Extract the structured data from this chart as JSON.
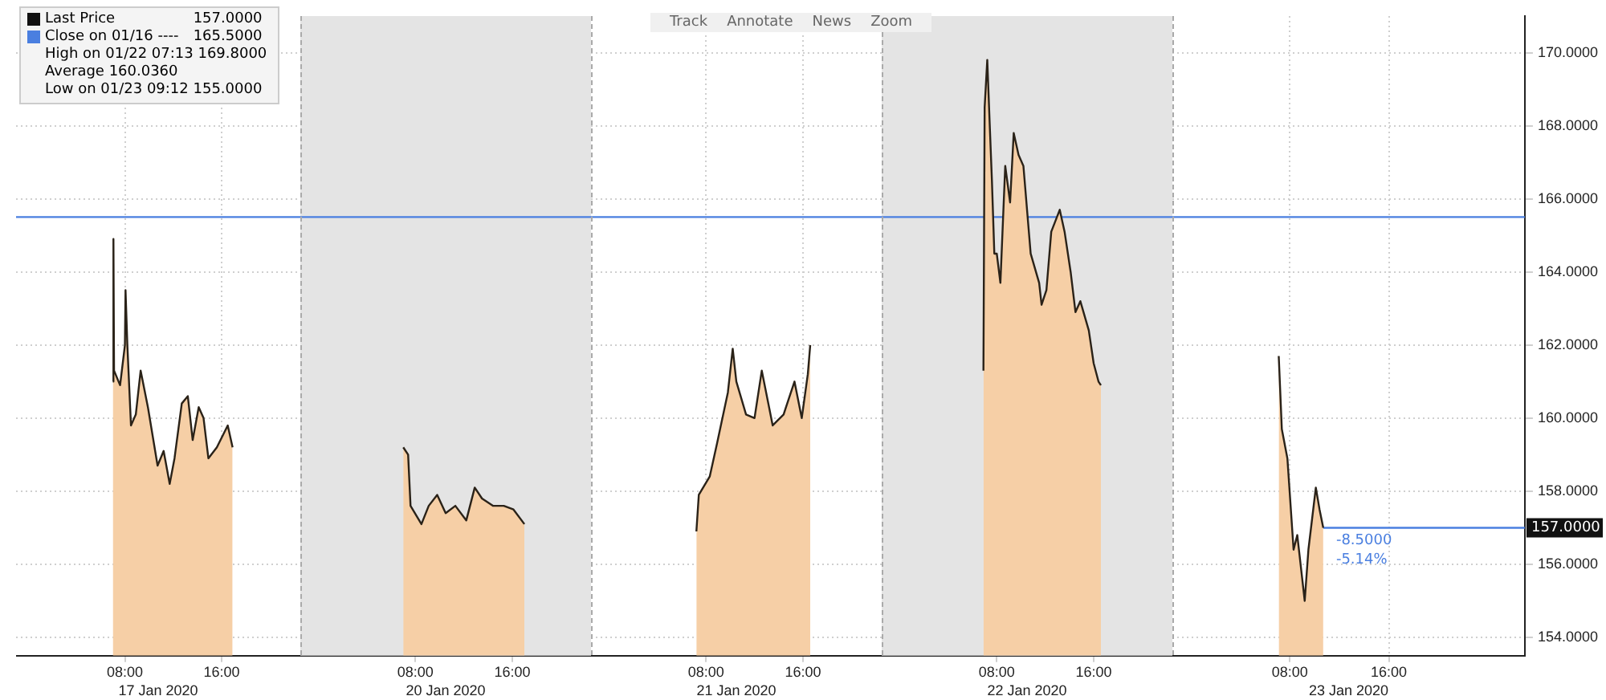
{
  "chart_data": [
    {
      "type": "area",
      "xlabel": "17 Jan 2020",
      "series": [
        {
          "name": "Last Price",
          "color": "#f6cfa6",
          "x": [
            "2020-01-17T07:00",
            "2020-01-17T07:03",
            "2020-01-17T07:06",
            "2020-01-17T07:36",
            "2020-01-17T08:00",
            "2020-01-17T08:03",
            "2020-01-17T08:12",
            "2020-01-17T08:30",
            "2020-01-17T08:54",
            "2020-01-17T09:18",
            "2020-01-17T09:54",
            "2020-01-17T10:42",
            "2020-01-17T11:12",
            "2020-01-17T11:42",
            "2020-01-17T12:06",
            "2020-01-17T12:42",
            "2020-01-17T13:12",
            "2020-01-17T13:36",
            "2020-01-17T14:06",
            "2020-01-17T14:30",
            "2020-01-17T14:54",
            "2020-01-17T15:36",
            "2020-01-17T16:30",
            "2020-01-17T16:54"
          ],
          "values": [
            161.0,
            164.9,
            161.3,
            160.9,
            162.0,
            163.5,
            162.0,
            159.8,
            160.1,
            161.3,
            160.3,
            158.7,
            159.1,
            158.2,
            158.9,
            160.4,
            160.6,
            159.4,
            160.3,
            160.0,
            158.9,
            159.2,
            159.8,
            159.2
          ]
        }
      ],
      "xlim": [
        "2020-01-16T23:00",
        "2020-01-17T22:30"
      ],
      "xticks": [
        {
          "value": "2020-01-17T08:00",
          "label": "08:00"
        },
        {
          "value": "2020-01-17T16:00",
          "label": "16:00"
        }
      ],
      "ylim": [
        153.5,
        171
      ],
      "yticks": [
        154,
        156,
        158,
        160,
        162,
        164,
        166,
        168,
        170
      ],
      "ref_lines": [
        {
          "axis": "y",
          "value": 165.5,
          "color": "#4a7fe0",
          "line_style": "solid"
        }
      ],
      "annotations": [
        "157.0000",
        "Close on 01/16 ----",
        "165.5000",
        "High on 01/22 07:13 169.8000",
        "Average 160.0360",
        "Low on 01/23 09:12 155.0000",
        "Track",
        "Annotate",
        "News",
        "Zoom"
      ],
      "grid": true,
      "legend": "top left",
      "tick_labels": "x",
      "line_style": "solid",
      "marker": "none"
    },
    {
      "type": "area",
      "xlabel": "20 Jan 2020",
      "series": [
        {
          "color": "#f6cfa6",
          "x": [
            "2020-01-20T07:00",
            "2020-01-20T07:24",
            "2020-01-20T07:36",
            "2020-01-20T08:30",
            "2020-01-20T09:06",
            "2020-01-20T09:48",
            "2020-01-20T10:30",
            "2020-01-20T11:18",
            "2020-01-20T12:12",
            "2020-01-20T12:54",
            "2020-01-20T13:30",
            "2020-01-20T14:24",
            "2020-01-20T15:18",
            "2020-01-20T16:06",
            "2020-01-20T17:00"
          ],
          "values": [
            159.2,
            159.0,
            157.6,
            157.1,
            157.6,
            157.9,
            157.4,
            157.6,
            157.2,
            158.1,
            157.8,
            157.6,
            157.6,
            157.5,
            157.1
          ]
        }
      ],
      "xlim": [
        "2020-01-19T22:30",
        "2020-01-20T22:30"
      ],
      "xticks": [
        {
          "value": "2020-01-20T08:00",
          "label": "08:00"
        },
        {
          "value": "2020-01-20T16:00",
          "label": "16:00"
        }
      ],
      "ylim": [
        153.5,
        171
      ],
      "yticks": [
        154,
        156,
        158,
        160,
        162,
        164,
        166,
        168,
        170
      ],
      "bands": [
        {
          "axis": "x",
          "from": "2020-01-19T22:30",
          "to": "2020-01-20T22:30",
          "color": "#e4e4e4"
        }
      ],
      "ref_lines": [
        {
          "axis": "y",
          "value": 165.5,
          "color": "#4a7fe0",
          "line_style": "solid"
        }
      ],
      "grid": true,
      "tick_labels": "x",
      "line_style": "solid",
      "marker": "none"
    },
    {
      "type": "area",
      "xlabel": "21 Jan 2020",
      "series": [
        {
          "color": "#f6cfa6",
          "x": [
            "2020-01-21T07:12",
            "2020-01-21T07:24",
            "2020-01-21T08:18",
            "2020-01-21T08:54",
            "2020-01-21T09:48",
            "2020-01-21T10:12",
            "2020-01-21T10:30",
            "2020-01-21T11:18",
            "2020-01-21T12:00",
            "2020-01-21T12:36",
            "2020-01-21T13:30",
            "2020-01-21T14:24",
            "2020-01-21T15:18",
            "2020-01-21T15:54",
            "2020-01-21T16:24",
            "2020-01-21T16:36"
          ],
          "values": [
            156.9,
            157.9,
            158.4,
            159.3,
            160.7,
            161.9,
            161.0,
            160.1,
            160.0,
            161.3,
            159.8,
            160.1,
            161.0,
            160.0,
            161.2,
            162.0
          ]
        }
      ],
      "xlim": [
        "2020-01-20T22:30",
        "2020-01-21T22:30"
      ],
      "xticks": [
        {
          "value": "2020-01-21T08:00",
          "label": "08:00"
        },
        {
          "value": "2020-01-21T16:00",
          "label": "16:00"
        }
      ],
      "ylim": [
        153.5,
        171
      ],
      "yticks": [
        154,
        156,
        158,
        160,
        162,
        164,
        166,
        168,
        170
      ],
      "ref_lines": [
        {
          "axis": "y",
          "value": 165.5,
          "color": "#4a7fe0",
          "line_style": "solid"
        }
      ],
      "grid": true,
      "tick_labels": "x",
      "line_style": "solid",
      "marker": "none"
    },
    {
      "type": "area",
      "xlabel": "22 Jan 2020",
      "series": [
        {
          "color": "#f6cfa6",
          "x": [
            "2020-01-22T06:54",
            "2020-01-22T07:00",
            "2020-01-22T07:13",
            "2020-01-22T07:24",
            "2020-01-22T07:36",
            "2020-01-22T07:48",
            "2020-01-22T08:00",
            "2020-01-22T08:18",
            "2020-01-22T08:42",
            "2020-01-22T09:06",
            "2020-01-22T09:24",
            "2020-01-22T09:48",
            "2020-01-22T10:12",
            "2020-01-22T10:48",
            "2020-01-22T11:30",
            "2020-01-22T11:42",
            "2020-01-22T12:06",
            "2020-01-22T12:30",
            "2020-01-22T13:12",
            "2020-01-22T13:36",
            "2020-01-22T14:06",
            "2020-01-22T14:30",
            "2020-01-22T14:54",
            "2020-01-22T15:36",
            "2020-01-22T16:00",
            "2020-01-22T16:24",
            "2020-01-22T16:36"
          ],
          "values": [
            161.3,
            168.5,
            169.8,
            168.2,
            166.5,
            164.5,
            164.5,
            163.7,
            166.9,
            165.9,
            167.8,
            167.2,
            166.9,
            164.5,
            163.7,
            163.1,
            163.5,
            165.1,
            165.7,
            165.1,
            164.0,
            162.9,
            163.2,
            162.4,
            161.5,
            161.0,
            160.9
          ]
        }
      ],
      "xlim": [
        "2020-01-21T22:30",
        "2020-01-22T22:30"
      ],
      "xticks": [
        {
          "value": "2020-01-22T08:00",
          "label": "08:00"
        },
        {
          "value": "2020-01-22T16:00",
          "label": "16:00"
        }
      ],
      "ylim": [
        153.5,
        171
      ],
      "yticks": [
        154,
        156,
        158,
        160,
        162,
        164,
        166,
        168,
        170
      ],
      "bands": [
        {
          "axis": "x",
          "from": "2020-01-21T22:30",
          "to": "2020-01-22T22:30",
          "color": "#e4e4e4"
        }
      ],
      "ref_lines": [
        {
          "axis": "y",
          "value": 165.5,
          "color": "#4a7fe0",
          "line_style": "solid"
        }
      ],
      "grid": true,
      "tick_labels": "x",
      "line_style": "solid",
      "marker": "none"
    },
    {
      "type": "area",
      "xlabel": "23 Jan 2020",
      "series": [
        {
          "color": "#f6cfa6",
          "x": [
            "2020-01-23T07:06",
            "2020-01-23T07:21",
            "2020-01-23T07:48",
            "2020-01-23T08:18",
            "2020-01-23T08:36",
            "2020-01-23T09:00",
            "2020-01-23T09:12",
            "2020-01-23T09:30",
            "2020-01-23T10:06",
            "2020-01-23T10:24",
            "2020-01-23T10:42"
          ],
          "values": [
            161.7,
            159.7,
            158.9,
            156.4,
            156.8,
            155.6,
            155.0,
            156.4,
            158.1,
            157.5,
            157.0
          ]
        }
      ],
      "xlim": [
        "2020-01-22T22:30",
        "2020-01-24T03:00"
      ],
      "xticks": [
        {
          "value": "2020-01-23T08:00",
          "label": "08:00"
        },
        {
          "value": "2020-01-23T16:00",
          "label": "16:00"
        }
      ],
      "ylim": [
        153.5,
        171
      ],
      "yticks": [
        {
          "value": 154,
          "label": "154.0000"
        },
        {
          "value": 156,
          "label": "156.0000"
        },
        {
          "value": 158,
          "label": "158.0000"
        },
        {
          "value": 160,
          "label": "160.0000"
        },
        {
          "value": 162,
          "label": "162.0000"
        },
        {
          "value": 164,
          "label": "164.0000"
        },
        {
          "value": 166,
          "label": "166.0000"
        },
        {
          "value": 168,
          "label": "168.0000"
        },
        {
          "value": 170,
          "label": "170.0000"
        }
      ],
      "ref_lines": [
        {
          "axis": "y",
          "value": 165.5,
          "color": "#4a7fe0",
          "line_style": "solid"
        },
        {
          "axis": "y",
          "value": 157,
          "label": "157.0000",
          "color": "#4a7fe0",
          "line_style": "solid"
        }
      ],
      "annotations": [
        {
          "text": "-8.5000",
          "x": "2020-01-23T10:42",
          "y": 157
        },
        {
          "text": "-5.14%",
          "x": "2020-01-23T10:42",
          "y": 157
        }
      ],
      "grid": true,
      "line_style": "solid",
      "marker": "none"
    }
  ]
}
